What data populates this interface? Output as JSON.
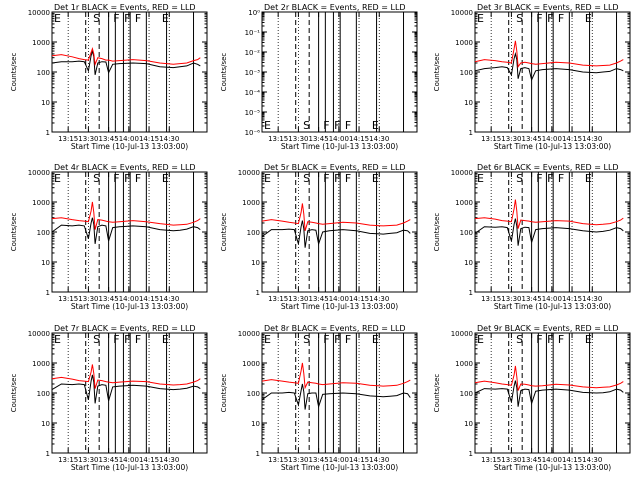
{
  "colors": {
    "events": "#000000",
    "lld": "#ff0000",
    "background": "#ffffff"
  },
  "shared": {
    "xlabel": "Start Time (10-Jul-13 13:03:00)",
    "ylabel": "Counts/sec",
    "xticks": [
      "13:15",
      "13:30",
      "13:45",
      "14:00",
      "14:15",
      "14:30"
    ],
    "yticks_log": [
      "1",
      "10",
      "100",
      "1000",
      "10000"
    ],
    "yticks_tiny": [
      "10⁻⁶",
      "10⁻⁵",
      "10⁻⁴",
      "10⁻³",
      "10⁻²",
      "10⁻¹",
      "10⁰"
    ],
    "flags": [
      "E",
      "S",
      "F",
      "F",
      "F",
      "E"
    ]
  },
  "chart_data": [
    {
      "type": "line",
      "title": "Det 1r BLACK = Events, RED = LLD",
      "yscale": "log",
      "ylim": [
        1,
        10000
      ],
      "x_minutes_after_13_03": [
        0,
        7,
        15,
        20,
        24,
        27,
        29,
        30,
        31,
        32,
        34,
        37,
        40,
        42,
        45,
        50,
        60,
        70,
        80,
        90,
        95,
        100,
        105,
        108,
        110
      ],
      "series": [
        {
          "values": [
            200,
            220,
            220,
            230,
            220,
            110,
            350,
            500,
            320,
            80,
            200,
            220,
            215,
            95,
            180,
            190,
            200,
            190,
            150,
            140,
            150,
            160,
            200,
            180,
            160
          ]
        },
        {
          "values": [
            350,
            380,
            320,
            280,
            260,
            250,
            450,
            600,
            400,
            180,
            300,
            280,
            250,
            250,
            230,
            240,
            260,
            240,
            200,
            180,
            190,
            200,
            240,
            260,
            300
          ]
        }
      ]
    },
    {
      "type": "line",
      "title": "Det 2r BLACK = Events, RED = LLD",
      "yscale": "log",
      "ylim": [
        1e-06,
        1
      ],
      "x_minutes_after_13_03": [],
      "series": [
        {
          "values": []
        },
        {
          "values": []
        }
      ]
    },
    {
      "type": "line",
      "title": "Det 3r BLACK = Events, RED = LLD",
      "yscale": "log",
      "ylim": [
        1,
        10000
      ],
      "x_minutes_after_13_03": [
        0,
        7,
        15,
        20,
        24,
        27,
        29,
        30,
        31,
        32,
        34,
        37,
        40,
        42,
        45,
        50,
        60,
        70,
        80,
        90,
        95,
        100,
        105,
        108,
        110
      ],
      "series": [
        {
          "values": [
            110,
            130,
            140,
            150,
            140,
            80,
            280,
            400,
            260,
            60,
            130,
            140,
            130,
            55,
            110,
            120,
            130,
            120,
            100,
            95,
            100,
            105,
            130,
            120,
            110
          ]
        },
        {
          "values": [
            220,
            260,
            240,
            220,
            210,
            200,
            600,
            1100,
            500,
            150,
            200,
            210,
            200,
            190,
            180,
            190,
            210,
            200,
            170,
            160,
            165,
            170,
            200,
            230,
            260
          ]
        }
      ]
    },
    {
      "type": "line",
      "title": "Det 4r BLACK = Events, RED = LLD",
      "yscale": "log",
      "ylim": [
        1,
        10000
      ],
      "x_minutes_after_13_03": [
        0,
        7,
        15,
        20,
        24,
        27,
        29,
        30,
        31,
        32,
        34,
        37,
        40,
        42,
        45,
        50,
        60,
        70,
        80,
        90,
        95,
        100,
        105,
        108,
        110
      ],
      "series": [
        {
          "values": [
            100,
            170,
            160,
            170,
            160,
            60,
            200,
            300,
            180,
            40,
            150,
            170,
            160,
            50,
            140,
            150,
            160,
            150,
            120,
            110,
            115,
            125,
            150,
            140,
            120
          ]
        },
        {
          "values": [
            280,
            300,
            260,
            240,
            230,
            220,
            500,
            1000,
            450,
            120,
            260,
            250,
            230,
            220,
            210,
            220,
            240,
            220,
            190,
            170,
            175,
            180,
            210,
            240,
            280
          ]
        }
      ]
    },
    {
      "type": "line",
      "title": "Det 5r BLACK = Events, RED = LLD",
      "yscale": "log",
      "ylim": [
        1,
        10000
      ],
      "x_minutes_after_13_03": [
        0,
        7,
        15,
        20,
        24,
        27,
        29,
        30,
        31,
        32,
        34,
        37,
        40,
        42,
        45,
        50,
        60,
        70,
        80,
        90,
        95,
        100,
        105,
        108,
        110
      ],
      "series": [
        {
          "values": [
            70,
            120,
            120,
            125,
            120,
            40,
            150,
            240,
            130,
            30,
            110,
            120,
            115,
            40,
            100,
            110,
            120,
            110,
            90,
            85,
            90,
            95,
            115,
            110,
            90
          ]
        },
        {
          "values": [
            230,
            260,
            230,
            210,
            200,
            190,
            450,
            900,
            400,
            110,
            220,
            210,
            200,
            190,
            180,
            190,
            210,
            200,
            170,
            160,
            165,
            170,
            200,
            230,
            260
          ]
        }
      ]
    },
    {
      "type": "line",
      "title": "Det 6r BLACK = Events, RED = LLD",
      "yscale": "log",
      "ylim": [
        1,
        10000
      ],
      "x_minutes_after_13_03": [
        0,
        7,
        15,
        20,
        24,
        27,
        29,
        30,
        31,
        32,
        34,
        37,
        40,
        42,
        45,
        50,
        60,
        70,
        80,
        90,
        95,
        100,
        105,
        108,
        110
      ],
      "series": [
        {
          "values": [
            90,
            150,
            145,
            150,
            140,
            50,
            180,
            280,
            160,
            35,
            130,
            145,
            140,
            45,
            120,
            130,
            140,
            130,
            110,
            100,
            105,
            115,
            140,
            130,
            110
          ]
        },
        {
          "values": [
            280,
            300,
            270,
            240,
            230,
            220,
            600,
            1200,
            500,
            130,
            250,
            240,
            230,
            220,
            210,
            220,
            240,
            230,
            190,
            175,
            180,
            190,
            220,
            250,
            290
          ]
        }
      ]
    },
    {
      "type": "line",
      "title": "Det 7r BLACK = Events, RED = LLD",
      "yscale": "log",
      "ylim": [
        1,
        10000
      ],
      "x_minutes_after_13_03": [
        0,
        7,
        15,
        20,
        24,
        27,
        29,
        30,
        31,
        32,
        34,
        37,
        40,
        42,
        45,
        50,
        60,
        70,
        80,
        90,
        95,
        100,
        105,
        108,
        110
      ],
      "series": [
        {
          "values": [
            130,
            200,
            190,
            200,
            190,
            60,
            250,
            400,
            230,
            45,
            170,
            190,
            180,
            55,
            160,
            170,
            180,
            170,
            140,
            130,
            135,
            145,
            170,
            160,
            140
          ]
        },
        {
          "values": [
            300,
            330,
            290,
            260,
            250,
            240,
            500,
            900,
            450,
            140,
            270,
            260,
            240,
            230,
            220,
            230,
            250,
            240,
            200,
            185,
            190,
            200,
            230,
            260,
            300
          ]
        }
      ]
    },
    {
      "type": "line",
      "title": "Det 8r BLACK = Events, RED = LLD",
      "yscale": "log",
      "ylim": [
        1,
        10000
      ],
      "x_minutes_after_13_03": [
        0,
        7,
        15,
        20,
        24,
        27,
        29,
        30,
        31,
        32,
        34,
        37,
        40,
        42,
        45,
        50,
        60,
        70,
        80,
        90,
        95,
        100,
        105,
        108,
        110
      ],
      "series": [
        {
          "values": [
            60,
            100,
            100,
            105,
            100,
            40,
            120,
            200,
            110,
            28,
            95,
            100,
            100,
            35,
            90,
            95,
            100,
            95,
            80,
            75,
            78,
            82,
            100,
            95,
            70
          ]
        },
        {
          "values": [
            250,
            280,
            250,
            230,
            220,
            210,
            550,
            1000,
            450,
            150,
            230,
            220,
            210,
            200,
            190,
            200,
            220,
            210,
            180,
            170,
            175,
            180,
            210,
            240,
            270
          ]
        }
      ]
    },
    {
      "type": "line",
      "title": "Det 9r BLACK = Events, RED = LLD",
      "yscale": "log",
      "ylim": [
        1,
        10000
      ],
      "x_minutes_after_13_03": [
        0,
        7,
        15,
        20,
        24,
        27,
        29,
        30,
        31,
        32,
        34,
        37,
        40,
        42,
        45,
        50,
        60,
        70,
        80,
        90,
        95,
        100,
        105,
        108,
        110
      ],
      "series": [
        {
          "values": [
            100,
            140,
            135,
            140,
            135,
            50,
            170,
            260,
            150,
            35,
            120,
            135,
            130,
            45,
            115,
            125,
            135,
            125,
            105,
            100,
            102,
            110,
            135,
            125,
            105
          ]
        },
        {
          "values": [
            220,
            250,
            220,
            200,
            190,
            180,
            400,
            800,
            350,
            120,
            200,
            195,
            185,
            175,
            170,
            175,
            195,
            185,
            160,
            150,
            155,
            160,
            185,
            210,
            240
          ]
        }
      ]
    }
  ]
}
